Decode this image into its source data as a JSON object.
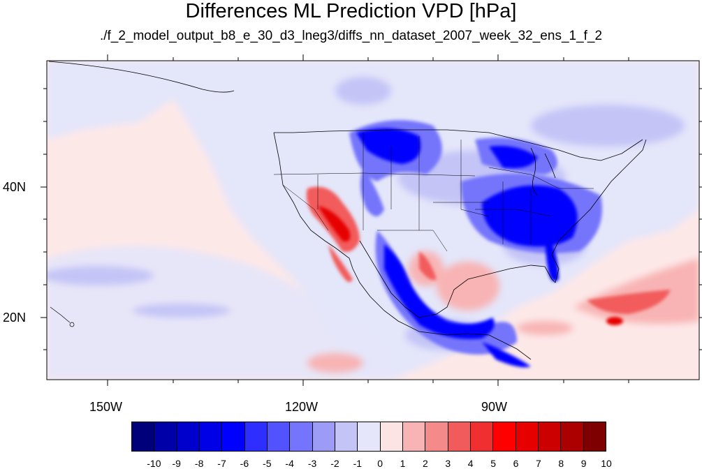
{
  "title": "Differences ML Prediction VPD [hPa]",
  "subtitle": "./f_2_model_output_b8_e_30_d3_lneg3/diffs_nn_dataset_2007_week_32_ens_1_f_2",
  "map": {
    "lon_labels": [
      "150W",
      "120W",
      "90W"
    ],
    "lat_labels": [
      "40N",
      "20N"
    ],
    "lon_range": [
      -160,
      -62
    ],
    "lat_range": [
      11,
      60
    ],
    "background_color": "#fde8e8",
    "land_neutral_color": "#e4e6fa"
  },
  "colorbar": {
    "labels": [
      "-10",
      "-9",
      "-8",
      "-7",
      "-6",
      "-5",
      "-4",
      "-3",
      "-2",
      "-1",
      "0",
      "1",
      "2",
      "3",
      "4",
      "5",
      "6",
      "7",
      "8",
      "9",
      "10"
    ],
    "colors": [
      "#00007a",
      "#0000a8",
      "#0000cc",
      "#0000e6",
      "#0000ff",
      "#2e2eff",
      "#5252ff",
      "#7474fc",
      "#9c9cf7",
      "#c4c4f7",
      "#e6e6fa",
      "#fde4e4",
      "#f8b4b4",
      "#f58a8a",
      "#f25b5b",
      "#f03030",
      "#ff0000",
      "#e60000",
      "#cc0000",
      "#aa0000",
      "#7e0000"
    ]
  }
}
